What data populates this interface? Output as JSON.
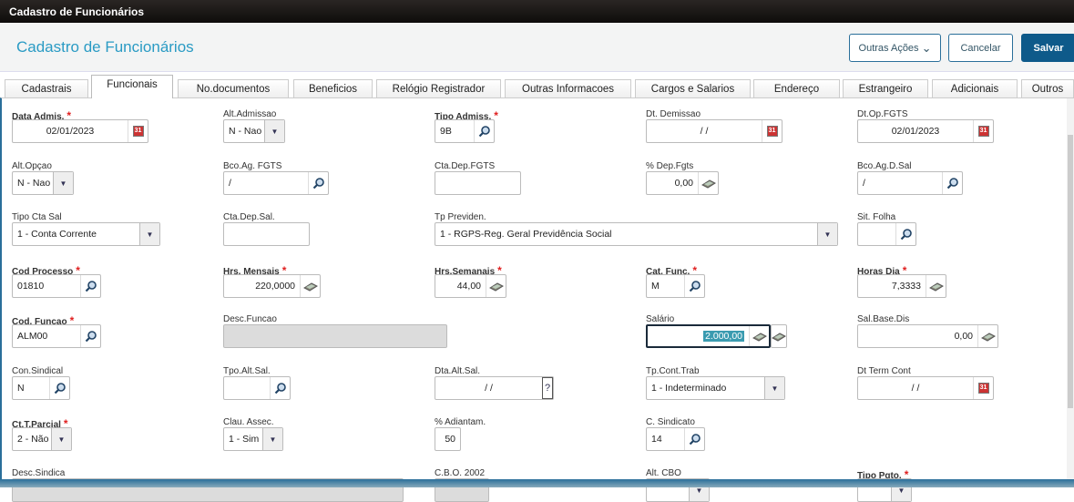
{
  "window_title": "Cadastro de Funcionários",
  "header": {
    "title": "Cadastro de Funcionários",
    "outras_acoes": "Outras Ações",
    "cancelar": "Cancelar",
    "salvar": "Salvar",
    "accent": "#2a9bc4",
    "primary": "#0e5a8a"
  },
  "tabs": [
    "Cadastrais",
    "Funcionais",
    "No.documentos",
    "Beneficios",
    "Relógio Registrador",
    "Outras Informacoes",
    "Cargos e Salarios",
    "Endereço",
    "Estrangeiro",
    "Adicionais",
    "Outros"
  ],
  "active_tab": "Funcionais",
  "fields": [
    {
      "label": "Data Admis.",
      "required": true,
      "value": "02/01/2023",
      "icon": "calendar"
    },
    {
      "label": "Alt.Admissao",
      "required": false,
      "value": "N - Nao",
      "icon": "select"
    },
    {
      "label": "Tipo Admiss.",
      "required": true,
      "value": "9B",
      "icon": "search"
    },
    {
      "label": "Dt. Demissao",
      "required": false,
      "value": "/ /",
      "icon": "calendar"
    },
    {
      "label": "Dt.Op.FGTS",
      "required": false,
      "value": "02/01/2023",
      "icon": "calendar"
    },
    {
      "label": "Alt.Opçao",
      "required": false,
      "value": "N - Nao",
      "icon": "select"
    },
    {
      "label": "Bco.Ag. FGTS",
      "required": false,
      "value": "/",
      "icon": "search"
    },
    {
      "label": "Cta.Dep.FGTS",
      "required": false,
      "value": "",
      "icon": "none"
    },
    {
      "label": "% Dep.Fgts",
      "required": false,
      "value": "0,00",
      "icon": "calc"
    },
    {
      "label": "Bco.Ag.D.Sal",
      "required": false,
      "value": "/",
      "icon": "search"
    },
    {
      "label": "Tipo Cta Sal",
      "required": false,
      "value": "1 - Conta Corrente",
      "icon": "select"
    },
    {
      "label": "Cta.Dep.Sal.",
      "required": false,
      "value": "",
      "icon": "none"
    },
    {
      "label": "Tp Previden.",
      "required": false,
      "value": "1 - RGPS-Reg. Geral Previdência Social",
      "icon": "select"
    },
    {
      "label": "Sit. Folha",
      "required": false,
      "value": "",
      "icon": "search"
    },
    {
      "label": "Cod Processo",
      "required": true,
      "value": "01810",
      "icon": "search"
    },
    {
      "label": "Hrs. Mensais",
      "required": true,
      "value": "220,0000",
      "icon": "calc"
    },
    {
      "label": "Hrs.Semanais",
      "required": true,
      "value": "44,00",
      "icon": "calc"
    },
    {
      "label": "Cat. Func.",
      "required": true,
      "value": "M",
      "icon": "search"
    },
    {
      "label": "Horas Dia",
      "required": true,
      "value": "7,3333",
      "icon": "calc"
    },
    {
      "label": "Cod. Funcao",
      "required": true,
      "value": "ALM00",
      "icon": "search"
    },
    {
      "label": "Desc.Funcao",
      "required": false,
      "value": "",
      "icon": "none",
      "disabled": true
    },
    {
      "label": "Salário",
      "required": false,
      "value": "2.000,00",
      "icon": "calc",
      "focused": true
    },
    {
      "label": "Sal.Base.Dis",
      "required": false,
      "value": "0,00",
      "icon": "calc"
    },
    {
      "label": "Con.Sindical",
      "required": false,
      "value": "N",
      "icon": "search"
    },
    {
      "label": "Tpo.Alt.Sal.",
      "required": false,
      "value": "",
      "icon": "search"
    },
    {
      "label": "Dta.Alt.Sal.",
      "required": false,
      "value": "/ /",
      "icon": "help"
    },
    {
      "label": "Tp.Cont.Trab",
      "required": false,
      "value": "1 - Indeterminado",
      "icon": "select"
    },
    {
      "label": "Dt Term Cont",
      "required": false,
      "value": "/ /",
      "icon": "calendar"
    },
    {
      "label": "Ct.T.Parcial",
      "required": true,
      "value": "2 - Não",
      "icon": "select"
    },
    {
      "label": "Clau. Assec.",
      "required": false,
      "value": "1 - Sim",
      "icon": "select"
    },
    {
      "label": "% Adiantam.",
      "required": false,
      "value": "50",
      "icon": "none"
    },
    {
      "label": "C. Sindicato",
      "required": false,
      "value": "14",
      "icon": "search"
    },
    {
      "label": "Desc.Sindica",
      "required": false,
      "value": "",
      "icon": "none",
      "disabled": true
    },
    {
      "label": "C.B.O. 2002",
      "required": false,
      "value": "",
      "icon": "none",
      "disabled": true
    },
    {
      "label": "Alt. CBO",
      "required": false,
      "value": "",
      "icon": "select"
    },
    {
      "label": "Tipo Pgto.",
      "required": true,
      "value": "",
      "icon": "select"
    }
  ]
}
